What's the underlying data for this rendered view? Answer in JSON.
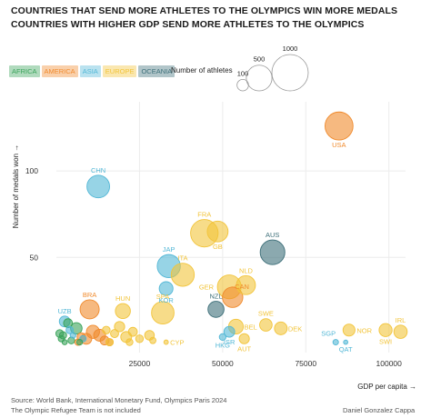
{
  "titles": {
    "line1": "COUNTRIES THAT SEND MORE ATHLETES TO THE OLYMPICS WIN MORE MEDALS",
    "line2": "COUNTRIES WITH HIGHER GDP SEND MORE ATHLETES TO THE OLYMPICS"
  },
  "legend": {
    "continents": [
      {
        "name": "AFRICA",
        "color": "#3aa35a"
      },
      {
        "name": "AMERICA",
        "color": "#f08a2c"
      },
      {
        "name": "ASIA",
        "color": "#52b7d6"
      },
      {
        "name": "EUROPE",
        "color": "#f2c43a"
      },
      {
        "name": "OCEANIA",
        "color": "#3d6f79"
      }
    ],
    "size_title": "Number of athletes",
    "size_values": [
      100,
      500,
      1000
    ]
  },
  "footer": {
    "source": "Source: World Bank, International Monetary Fund, Olympics Paris 2024",
    "note": "The Olympic Refugee Team is not included",
    "author": "Daniel Gonzalez Cappa"
  },
  "chart_data": {
    "type": "scatter",
    "title": "COUNTRIES THAT SEND MORE ATHLETES TO THE OLYMPICS WIN MORE MEDALS",
    "subtitle": "COUNTRIES WITH HIGHER GDP SEND MORE ATHLETES TO THE OLYMPICS",
    "xlabel": "GDP per capita →",
    "ylabel": "Number of medals won →",
    "xlim": [
      0,
      105000
    ],
    "ylim": [
      -5,
      140
    ],
    "x_ticks": [
      25000,
      50000,
      75000,
      100000
    ],
    "y_ticks": [
      50,
      100
    ],
    "grid": true,
    "legend_position": "top-left",
    "size_encoding": "number of athletes",
    "series": [
      {
        "name": "AFRICA",
        "color": "#3aa35a",
        "points": [
          {
            "gdp": 3500,
            "medals": 12,
            "athletes": 60
          },
          {
            "gdp": 2000,
            "medals": 5,
            "athletes": 40
          },
          {
            "gdp": 6000,
            "medals": 9,
            "athletes": 100
          },
          {
            "gdp": 1500,
            "medals": 3,
            "athletes": 30
          },
          {
            "gdp": 2500,
            "medals": 1,
            "athletes": 20
          },
          {
            "gdp": 4500,
            "medals": 2,
            "athletes": 35
          },
          {
            "gdp": 7000,
            "medals": 1,
            "athletes": 25
          },
          {
            "gdp": 1000,
            "medals": 6,
            "athletes": 45
          }
        ]
      },
      {
        "name": "AMERICA",
        "color": "#f08a2c",
        "points": [
          {
            "label": "USA",
            "gdp": 85000,
            "medals": 126,
            "athletes": 592
          },
          {
            "label": "BRA",
            "gdp": 10000,
            "medals": 20,
            "athletes": 277
          },
          {
            "label": "CAN",
            "gdp": 53000,
            "medals": 27,
            "athletes": 315
          },
          {
            "gdp": 13000,
            "medals": 5,
            "athletes": 107
          },
          {
            "gdp": 11000,
            "medals": 7,
            "athletes": 130
          },
          {
            "gdp": 9000,
            "medals": 3,
            "athletes": 90
          },
          {
            "gdp": 14500,
            "medals": 2,
            "athletes": 60
          },
          {
            "gdp": 16000,
            "medals": 1,
            "athletes": 40
          },
          {
            "gdp": 7500,
            "medals": 4,
            "athletes": 55
          },
          {
            "gdp": 6500,
            "medals": 1,
            "athletes": 30
          }
        ]
      },
      {
        "name": "ASIA",
        "color": "#52b7d6",
        "points": [
          {
            "label": "CHN",
            "gdp": 12600,
            "medals": 91,
            "athletes": 388
          },
          {
            "label": "JAP",
            "gdp": 33800,
            "medals": 45,
            "athletes": 403
          },
          {
            "label": "KOR",
            "gdp": 33000,
            "medals": 32,
            "athletes": 143
          },
          {
            "label": "UZB",
            "gdp": 2500,
            "medals": 13,
            "athletes": 87
          },
          {
            "label": "ISR",
            "gdp": 52000,
            "medals": 7,
            "athletes": 88
          },
          {
            "label": "HKG",
            "gdp": 50000,
            "medals": 4,
            "athletes": 34
          },
          {
            "label": "SGP",
            "gdp": 84000,
            "medals": 1,
            "athletes": 23
          },
          {
            "label": "QAT",
            "gdp": 87000,
            "medals": 1,
            "athletes": 14
          },
          {
            "gdp": 4000,
            "medals": 8,
            "athletes": 40
          },
          {
            "gdp": 5000,
            "medals": 5,
            "athletes": 25
          },
          {
            "gdp": 8000,
            "medals": 3,
            "athletes": 30
          }
        ]
      },
      {
        "name": "EUROPE",
        "color": "#f2c43a",
        "points": [
          {
            "label": "FRA",
            "gdp": 44500,
            "medals": 64,
            "athletes": 573
          },
          {
            "label": "GB",
            "gdp": 48500,
            "medals": 65,
            "athletes": 327
          },
          {
            "label": "ITA",
            "gdp": 38000,
            "medals": 40,
            "athletes": 403
          },
          {
            "label": "NLD",
            "gdp": 57000,
            "medals": 34,
            "athletes": 273
          },
          {
            "label": "GER",
            "gdp": 52000,
            "medals": 33,
            "athletes": 428
          },
          {
            "label": "SWE",
            "gdp": 63000,
            "medals": 11,
            "athletes": 118
          },
          {
            "label": "DEK",
            "gdp": 67500,
            "medals": 9,
            "athletes": 123
          },
          {
            "label": "HUN",
            "gdp": 20000,
            "medals": 19,
            "athletes": 170
          },
          {
            "label": "SPA",
            "gdp": 32000,
            "medals": 18,
            "athletes": 383
          },
          {
            "label": "BEL",
            "gdp": 54000,
            "medals": 10,
            "athletes": 165
          },
          {
            "label": "AUT",
            "gdp": 56500,
            "medals": 3,
            "athletes": 78
          },
          {
            "label": "CYP",
            "gdp": 33000,
            "medals": 1,
            "athletes": 15
          },
          {
            "label": "NOR",
            "gdp": 88000,
            "medals": 8,
            "athletes": 108
          },
          {
            "label": "IRL",
            "gdp": 103500,
            "medals": 7,
            "athletes": 134
          },
          {
            "label": "SWI",
            "gdp": 99000,
            "medals": 8,
            "athletes": 128
          },
          {
            "gdp": 19000,
            "medals": 10,
            "athletes": 80
          },
          {
            "gdp": 21000,
            "medals": 4,
            "athletes": 90
          },
          {
            "gdp": 23000,
            "medals": 7,
            "athletes": 60
          },
          {
            "gdp": 25000,
            "medals": 3,
            "athletes": 45
          },
          {
            "gdp": 28000,
            "medals": 5,
            "athletes": 70
          },
          {
            "gdp": 29000,
            "medals": 2,
            "athletes": 30
          },
          {
            "gdp": 16000,
            "medals": 1,
            "athletes": 40
          },
          {
            "gdp": 17500,
            "medals": 6,
            "athletes": 50
          },
          {
            "gdp": 22000,
            "medals": 1,
            "athletes": 35
          },
          {
            "gdp": 15000,
            "medals": 8,
            "athletes": 45
          }
        ]
      },
      {
        "name": "OCEANIA",
        "color": "#3d6f79",
        "points": [
          {
            "label": "AUS",
            "gdp": 65000,
            "medals": 53,
            "athletes": 460
          },
          {
            "label": "NZL",
            "gdp": 48000,
            "medals": 20,
            "athletes": 195
          }
        ]
      }
    ]
  }
}
